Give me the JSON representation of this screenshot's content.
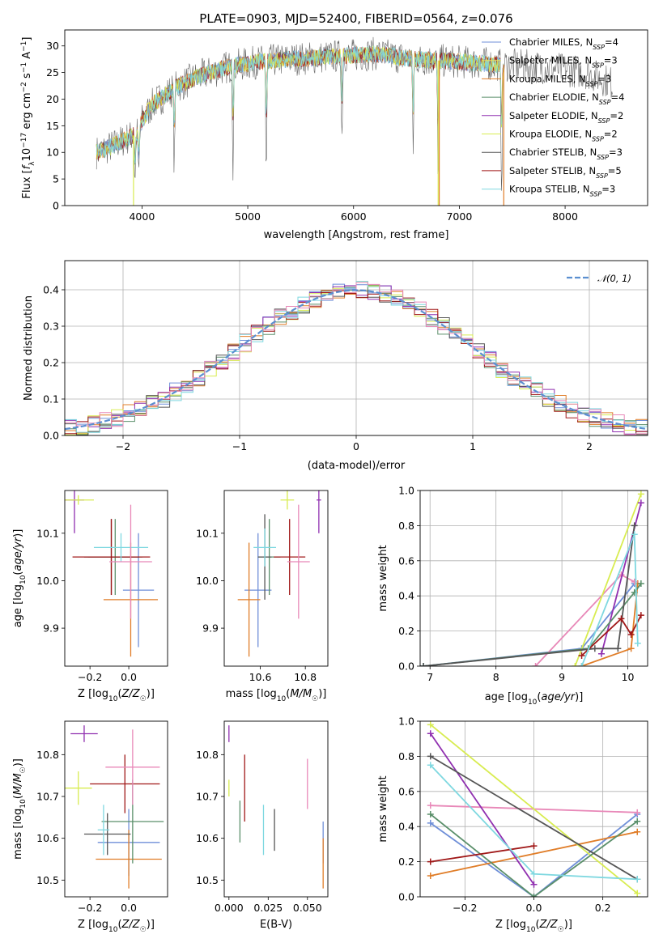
{
  "title": "PLATE=0903, MJD=52400, FIBERID=0564, z=0.076",
  "colors": {
    "Chabrier MILES": "#6f8fd8",
    "Salpeter MILES": "#e8e060",
    "Kroupa MILES": "#e07d28",
    "Chabrier ELODIE": "#5a8f6a",
    "Salpeter ELODIE": "#9030b0",
    "Kroupa ELODIE": "#d8ec50",
    "Chabrier STELIB": "#555555",
    "Salpeter STELIB": "#a01818",
    "Kroupa STELIB": "#7fd8e0",
    "pink": "#e888b8",
    "gauss": "#5b8fd0"
  },
  "chart_data": [
    {
      "name": "spectrum",
      "type": "line",
      "xlabel": "wavelength [Angstrom, rest frame]",
      "ylabel": "Flux [f_λ 10^-17 erg cm^-2 s^-1 A^-1]",
      "ylabel_parts": {
        "main": "Flux [",
        "f": "f",
        "fsub": "λ",
        "ten": "10",
        "exp1": "−17",
        "erg": " erg cm",
        "exp2": "−2",
        "s": " s",
        "exp3": "−1",
        "A": " A",
        "exp4": "−1",
        "close": "]"
      },
      "xlim": [
        3270,
        8780
      ],
      "ylim": [
        0,
        33
      ],
      "xticks": [
        4000,
        5000,
        6000,
        7000,
        8000
      ],
      "yticks": [
        0,
        5,
        10,
        15,
        20,
        25,
        30
      ],
      "continuum": [
        [
          3570,
          10
        ],
        [
          3700,
          11
        ],
        [
          3850,
          12.5
        ],
        [
          3950,
          13.5
        ],
        [
          4000,
          16
        ],
        [
          4100,
          19
        ],
        [
          4300,
          22
        ],
        [
          4500,
          24
        ],
        [
          4800,
          26
        ],
        [
          5100,
          27
        ],
        [
          5400,
          27.5
        ],
        [
          5800,
          28
        ],
        [
          6200,
          28.5
        ],
        [
          6600,
          27.5
        ],
        [
          7000,
          27
        ],
        [
          7400,
          26.5
        ],
        [
          7800,
          26
        ],
        [
          8200,
          25
        ],
        [
          8450,
          23
        ]
      ],
      "absorptions": [
        [
          3934,
          10
        ],
        [
          3969,
          11
        ],
        [
          4305,
          17
        ],
        [
          4861,
          20
        ],
        [
          5175,
          25
        ],
        [
          5890,
          18
        ],
        [
          6563,
          20
        ],
        [
          6800,
          27
        ],
        [
          7400,
          26
        ]
      ],
      "legend": [
        {
          "name": "Chabrier MILES",
          "nssp": "4"
        },
        {
          "name": "Salpeter MILES",
          "nssp": "3"
        },
        {
          "name": "Kroupa MILES",
          "nssp": "3"
        },
        {
          "name": "Chabrier ELODIE",
          "nssp": "4"
        },
        {
          "name": "Salpeter ELODIE",
          "nssp": "2"
        },
        {
          "name": "Kroupa ELODIE",
          "nssp": "2"
        },
        {
          "name": "Chabrier STELIB",
          "nssp": "3"
        },
        {
          "name": "Salpeter STELIB",
          "nssp": "5"
        },
        {
          "name": "Kroupa STELIB",
          "nssp": "3"
        }
      ],
      "nssp_label": "N",
      "nssp_sub": "SSP"
    },
    {
      "name": "residual-histogram",
      "type": "step",
      "xlabel": "(data-model)/error",
      "ylabel": "Normed distribution",
      "xlim": [
        -2.5,
        2.5
      ],
      "ylim": [
        0,
        0.48
      ],
      "xticks": [
        -2,
        -1,
        0,
        1,
        2
      ],
      "xtick_labels": [
        "−2",
        "−1",
        "0",
        "1",
        "2"
      ],
      "yticks": [
        0.0,
        0.1,
        0.2,
        0.3,
        0.4
      ],
      "grid": true,
      "legend": "𝒩(0, 1)",
      "bin_width": 0.1,
      "gaussian": {
        "mean": 0,
        "sigma": 1
      }
    },
    {
      "name": "age-vs-Z",
      "type": "errorbar",
      "xlabel": "Z [log10(Z/Z☉)]",
      "ylabel": "age [log10(age/yr)]",
      "xlim": [
        -0.33,
        0.2
      ],
      "ylim": [
        9.82,
        10.19
      ],
      "xticks": [
        -0.2,
        0.0
      ],
      "xtick_labels": [
        "−0.2",
        "0.0"
      ],
      "yticks": [
        9.9,
        10.0,
        10.1
      ],
      "points": [
        {
          "c": "Chabrier MILES",
          "x": 0.05,
          "xe": 0.08,
          "y": 9.98,
          "ye": 0.12
        },
        {
          "c": "Kroupa MILES",
          "x": 0.01,
          "xe": 0.14,
          "y": 9.96,
          "ye": 0.12
        },
        {
          "c": "Salpeter ELODIE",
          "x": -0.28,
          "xe": 0.05,
          "y": 10.17,
          "ye": 0.07
        },
        {
          "c": "Kroupa ELODIE",
          "x": -0.26,
          "xe": 0.08,
          "y": 10.17,
          "ye": 0.01
        },
        {
          "c": "Chabrier ELODIE",
          "x": -0.07,
          "xe": 0.14,
          "y": 10.05,
          "ye": 0.08
        },
        {
          "c": "Chabrier STELIB",
          "x": -0.09,
          "xe": 0.14,
          "y": 10.05,
          "ye": 0.08
        },
        {
          "c": "Salpeter STELIB",
          "x": -0.09,
          "xe": 0.2,
          "y": 10.05,
          "ye": 0.08
        },
        {
          "c": "Kroupa STELIB",
          "x": -0.04,
          "xe": 0.14,
          "y": 10.07,
          "ye": 0.03
        },
        {
          "c": "pink",
          "x": 0.01,
          "xe": 0.11,
          "y": 10.04,
          "ye": 0.12
        }
      ]
    },
    {
      "name": "age-vs-mass",
      "type": "errorbar",
      "xlabel": "mass [log10(M/M☉)]",
      "ylabel": "",
      "xlim": [
        10.44,
        10.9
      ],
      "ylim": [
        9.82,
        10.19
      ],
      "xticks": [
        10.6,
        10.8
      ],
      "yticks": [
        9.9,
        10.0,
        10.1
      ],
      "points": [
        {
          "c": "Chabrier MILES",
          "x": 10.59,
          "xe": 0.06,
          "y": 9.98,
          "ye": 0.12
        },
        {
          "c": "Kroupa MILES",
          "x": 10.55,
          "xe": 0.05,
          "y": 9.96,
          "ye": 0.12
        },
        {
          "c": "Salpeter ELODIE",
          "x": 10.86,
          "xe": 0.01,
          "y": 10.17,
          "ye": 0.07
        },
        {
          "c": "Kroupa ELODIE",
          "x": 10.72,
          "xe": 0.03,
          "y": 10.17,
          "ye": 0.02
        },
        {
          "c": "Chabrier ELODIE",
          "x": 10.64,
          "xe": 0.05,
          "y": 10.05,
          "ye": 0.08
        },
        {
          "c": "Chabrier STELIB",
          "x": 10.62,
          "xe": 0.03,
          "y": 10.05,
          "ye": 0.09
        },
        {
          "c": "Salpeter STELIB",
          "x": 10.73,
          "xe": 0.07,
          "y": 10.05,
          "ye": 0.08
        },
        {
          "c": "Kroupa STELIB",
          "x": 10.62,
          "xe": 0.05,
          "y": 10.07,
          "ye": 0.04
        },
        {
          "c": "pink",
          "x": 10.77,
          "xe": 0.05,
          "y": 10.04,
          "ye": 0.12
        }
      ]
    },
    {
      "name": "mass-weight-vs-age",
      "type": "line",
      "xlabel": "age [log10(age/yr)]",
      "ylabel": "mass weight",
      "xlim": [
        6.85,
        10.3
      ],
      "ylim": [
        0,
        1.0
      ],
      "xticks": [
        7,
        8,
        9,
        10
      ],
      "yticks": [
        0.0,
        0.2,
        0.4,
        0.6,
        0.8,
        1.0
      ],
      "grid": true,
      "series": [
        {
          "c": "Chabrier MILES",
          "pts": [
            [
              6.9,
              0.0
            ],
            [
              9.3,
              0.1
            ],
            [
              10.1,
              0.47
            ]
          ]
        },
        {
          "c": "Kroupa MILES",
          "pts": [
            [
              9.3,
              0.0
            ],
            [
              10.05,
              0.1
            ],
            [
              10.15,
              0.47
            ]
          ]
        },
        {
          "c": "pink",
          "pts": [
            [
              8.6,
              0.0
            ],
            [
              9.9,
              0.52
            ],
            [
              10.1,
              0.48
            ]
          ]
        },
        {
          "c": "Kroupa ELODIE",
          "pts": [
            [
              9.2,
              0.0
            ],
            [
              10.2,
              0.98
            ]
          ]
        },
        {
          "c": "Salpeter ELODIE",
          "pts": [
            [
              9.6,
              0.07
            ],
            [
              10.2,
              0.93
            ]
          ]
        },
        {
          "c": "Chabrier ELODIE",
          "pts": [
            [
              6.9,
              0.0
            ],
            [
              9.4,
              0.1
            ],
            [
              10.1,
              0.42
            ],
            [
              10.2,
              0.47
            ]
          ]
        },
        {
          "c": "Chabrier STELIB",
          "pts": [
            [
              6.9,
              0.0
            ],
            [
              9.5,
              0.1
            ],
            [
              9.85,
              0.1
            ],
            [
              10.1,
              0.8
            ]
          ]
        },
        {
          "c": "Salpeter STELIB",
          "pts": [
            [
              9.3,
              0.06
            ],
            [
              9.9,
              0.27
            ],
            [
              10.05,
              0.18
            ],
            [
              10.2,
              0.29
            ]
          ]
        },
        {
          "c": "Kroupa STELIB",
          "pts": [
            [
              9.3,
              0.0
            ],
            [
              10.1,
              0.75
            ],
            [
              10.15,
              0.13
            ]
          ]
        }
      ]
    },
    {
      "name": "mass-vs-Z",
      "type": "errorbar",
      "xlabel": "Z [log10(Z/Z☉)]",
      "ylabel": "mass [log10(M/M☉)]",
      "xlim": [
        -0.33,
        0.2
      ],
      "ylim": [
        10.46,
        10.88
      ],
      "xticks": [
        -0.2,
        0.0
      ],
      "xtick_labels": [
        "−0.2",
        "0.0"
      ],
      "yticks": [
        10.5,
        10.6,
        10.7,
        10.8
      ],
      "points": [
        {
          "c": "Chabrier MILES",
          "x": 0.0,
          "xe": 0.16,
          "y": 10.59,
          "ye": 0.08
        },
        {
          "c": "Kroupa MILES",
          "x": 0.0,
          "xe": 0.17,
          "y": 10.55,
          "ye": 0.07
        },
        {
          "c": "Salpeter ELODIE",
          "x": -0.23,
          "xe": 0.07,
          "y": 10.85,
          "ye": 0.02
        },
        {
          "c": "Kroupa ELODIE",
          "x": -0.26,
          "xe": 0.07,
          "y": 10.72,
          "ye": 0.04
        },
        {
          "c": "Chabrier ELODIE",
          "x": 0.02,
          "xe": 0.16,
          "y": 10.64,
          "ye": 0.1
        },
        {
          "c": "Chabrier STELIB",
          "x": -0.11,
          "xe": 0.12,
          "y": 10.61,
          "ye": 0.05
        },
        {
          "c": "Salpeter STELIB",
          "x": -0.02,
          "xe": 0.18,
          "y": 10.73,
          "ye": 0.07
        },
        {
          "c": "Kroupa STELIB",
          "x": -0.13,
          "xe": 0.03,
          "y": 10.62,
          "ye": 0.06
        },
        {
          "c": "pink",
          "x": 0.02,
          "xe": 0.14,
          "y": 10.77,
          "ye": 0.09
        }
      ]
    },
    {
      "name": "mass-vs-EBV",
      "type": "errorbar",
      "xlabel": "E(B-V)",
      "ylabel": "",
      "xlim": [
        -0.003,
        0.063
      ],
      "ylim": [
        10.46,
        10.88
      ],
      "xticks": [
        0.0,
        0.025,
        0.05
      ],
      "xtick_labels": [
        "0.000",
        "0.025",
        "0.050"
      ],
      "yticks": [
        10.5,
        10.6,
        10.7,
        10.8
      ],
      "points": [
        {
          "c": "Chabrier MILES",
          "x": 0.06,
          "xe": 0,
          "y": 10.59,
          "ye": 0.05
        },
        {
          "c": "Kroupa MILES",
          "x": 0.06,
          "xe": 0,
          "y": 10.54,
          "ye": 0.06
        },
        {
          "c": "Salpeter ELODIE",
          "x": 0.0,
          "xe": 0,
          "y": 10.85,
          "ye": 0.02
        },
        {
          "c": "Kroupa ELODIE",
          "x": 0.0,
          "xe": 0,
          "y": 10.72,
          "ye": 0.02
        },
        {
          "c": "Chabrier ELODIE",
          "x": 0.007,
          "xe": 0,
          "y": 10.64,
          "ye": 0.05
        },
        {
          "c": "Chabrier STELIB",
          "x": 0.029,
          "xe": 0,
          "y": 10.62,
          "ye": 0.05
        },
        {
          "c": "Salpeter STELIB",
          "x": 0.01,
          "xe": 0,
          "y": 10.72,
          "ye": 0.08
        },
        {
          "c": "Kroupa STELIB",
          "x": 0.022,
          "xe": 0,
          "y": 10.62,
          "ye": 0.06
        },
        {
          "c": "pink",
          "x": 0.05,
          "xe": 0,
          "y": 10.73,
          "ye": 0.06
        }
      ]
    },
    {
      "name": "mass-weight-vs-Z",
      "type": "line",
      "xlabel": "Z [log10(Z/Z☉)]",
      "ylabel": "mass weight",
      "xlim": [
        -0.33,
        0.33
      ],
      "ylim": [
        0,
        1.0
      ],
      "xticks": [
        -0.2,
        0.0,
        0.2
      ],
      "xtick_labels": [
        "−0.2",
        "0.0",
        "0.2"
      ],
      "yticks": [
        0.0,
        0.2,
        0.4,
        0.6,
        0.8,
        1.0
      ],
      "grid": true,
      "series": [
        {
          "c": "Chabrier MILES",
          "pts": [
            [
              -0.3,
              0.42
            ],
            [
              0.0,
              0.0
            ],
            [
              0.3,
              0.47
            ]
          ]
        },
        {
          "c": "Kroupa MILES",
          "pts": [
            [
              -0.3,
              0.12
            ],
            [
              0.3,
              0.37
            ]
          ]
        },
        {
          "c": "pink",
          "pts": [
            [
              -0.3,
              0.52
            ],
            [
              0.3,
              0.48
            ]
          ]
        },
        {
          "c": "Kroupa ELODIE",
          "pts": [
            [
              -0.3,
              0.98
            ],
            [
              0.3,
              0.02
            ]
          ]
        },
        {
          "c": "Salpeter ELODIE",
          "pts": [
            [
              -0.3,
              0.93
            ],
            [
              0.0,
              0.07
            ]
          ]
        },
        {
          "c": "Chabrier ELODIE",
          "pts": [
            [
              -0.3,
              0.47
            ],
            [
              0.0,
              0.0
            ],
            [
              0.3,
              0.43
            ]
          ]
        },
        {
          "c": "Chabrier STELIB",
          "pts": [
            [
              -0.3,
              0.8
            ],
            [
              0.3,
              0.1
            ]
          ]
        },
        {
          "c": "Salpeter STELIB",
          "pts": [
            [
              -0.3,
              0.2
            ],
            [
              0.0,
              0.29
            ]
          ]
        },
        {
          "c": "Kroupa STELIB",
          "pts": [
            [
              -0.3,
              0.75
            ],
            [
              0.0,
              0.13
            ],
            [
              0.3,
              0.1
            ]
          ]
        }
      ]
    }
  ]
}
